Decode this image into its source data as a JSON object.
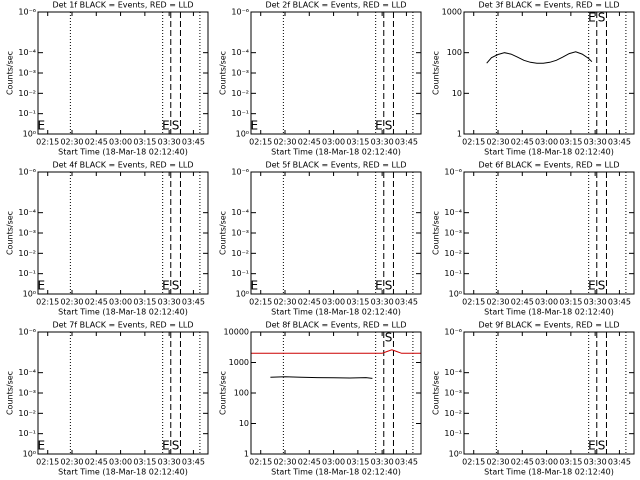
{
  "chart_data": [
    {
      "type": "line",
      "title": "Det 1f BLACK = Events, RED = LLD",
      "xlabel": "Start Time (18-Mar-18 02:12:40)",
      "ylabel": "Counts/sec",
      "log_y": true,
      "xlim": [
        129,
        234
      ],
      "xticks": [
        {
          "value": 135,
          "label": "02:15"
        },
        {
          "value": 150,
          "label": "02:30"
        },
        {
          "value": 165,
          "label": "02:45"
        },
        {
          "value": 180,
          "label": "03:00"
        },
        {
          "value": 195,
          "label": "03:15"
        },
        {
          "value": 210,
          "label": "03:30"
        },
        {
          "value": 225,
          "label": "03:45"
        }
      ],
      "ylim": [
        1,
        1e-06
      ],
      "yticks": [
        {
          "value": 1e-06,
          "label": "10⁻⁶"
        },
        {
          "value": 0.0001,
          "label": "10⁻⁴"
        },
        {
          "value": 0.001,
          "label": "10⁻³"
        },
        {
          "value": 0.01,
          "label": "10⁻²"
        },
        {
          "value": 0.1,
          "label": "10⁻¹"
        },
        {
          "value": 1,
          "label": "10⁰"
        }
      ],
      "series": [],
      "vlines": [
        {
          "x": 149,
          "style": "dotted"
        },
        {
          "x": 206,
          "style": "dotted"
        },
        {
          "x": 211,
          "style": "dashed"
        },
        {
          "x": 217,
          "style": "dashed"
        },
        {
          "x": 229,
          "style": "dotted"
        }
      ],
      "flags": [
        {
          "x": 131,
          "text": "E",
          "pos": "bottom"
        },
        {
          "x": 208,
          "text": "E",
          "pos": "bottom"
        },
        {
          "x": 214,
          "text": "S",
          "pos": "bottom"
        }
      ]
    },
    {
      "type": "line",
      "title": "Det 2f BLACK = Events, RED = LLD",
      "xlabel": "Start Time (18-Mar-18 02:12:40)",
      "ylabel": "Counts/sec",
      "log_y": true,
      "xlim": [
        129,
        234
      ],
      "xticks": [
        {
          "value": 135,
          "label": "02:15"
        },
        {
          "value": 150,
          "label": "02:30"
        },
        {
          "value": 165,
          "label": "02:45"
        },
        {
          "value": 180,
          "label": "03:00"
        },
        {
          "value": 195,
          "label": "03:15"
        },
        {
          "value": 210,
          "label": "03:30"
        },
        {
          "value": 225,
          "label": "03:45"
        }
      ],
      "ylim": [
        1,
        1e-06
      ],
      "yticks": [
        {
          "value": 1e-06,
          "label": "10⁻⁶"
        },
        {
          "value": 0.0001,
          "label": "10⁻⁴"
        },
        {
          "value": 0.001,
          "label": "10⁻³"
        },
        {
          "value": 0.01,
          "label": "10⁻²"
        },
        {
          "value": 0.1,
          "label": "10⁻¹"
        },
        {
          "value": 1,
          "label": "10⁰"
        }
      ],
      "series": [],
      "vlines": [
        {
          "x": 149,
          "style": "dotted"
        },
        {
          "x": 206,
          "style": "dotted"
        },
        {
          "x": 211,
          "style": "dashed"
        },
        {
          "x": 217,
          "style": "dashed"
        },
        {
          "x": 229,
          "style": "dotted"
        }
      ],
      "flags": [
        {
          "x": 131,
          "text": "E",
          "pos": "bottom"
        },
        {
          "x": 208,
          "text": "E",
          "pos": "bottom"
        },
        {
          "x": 214,
          "text": "S",
          "pos": "bottom"
        }
      ]
    },
    {
      "type": "line",
      "title": "Det 3f BLACK = Events, RED = LLD",
      "xlabel": "Start Time (18-Mar-18 02:12:40)",
      "ylabel": "Counts/sec",
      "log_y": true,
      "xlim": [
        129,
        234
      ],
      "xticks": [
        {
          "value": 135,
          "label": "02:15"
        },
        {
          "value": 150,
          "label": "02:30"
        },
        {
          "value": 165,
          "label": "02:45"
        },
        {
          "value": 180,
          "label": "03:00"
        },
        {
          "value": 195,
          "label": "03:15"
        },
        {
          "value": 210,
          "label": "03:30"
        },
        {
          "value": 225,
          "label": "03:45"
        }
      ],
      "ylim": [
        1,
        1000
      ],
      "yticks": [
        1,
        10,
        100,
        1000
      ],
      "series": [
        {
          "name": "Events",
          "color": "#000000",
          "x": [
            143,
            146,
            150,
            154,
            158,
            162,
            166,
            170,
            174,
            178,
            182,
            186,
            190,
            194,
            198,
            202,
            206,
            208
          ],
          "values": [
            55,
            75,
            90,
            100,
            92,
            78,
            65,
            58,
            55,
            55,
            58,
            65,
            78,
            95,
            105,
            92,
            72,
            60
          ]
        }
      ],
      "vlines": [
        {
          "x": 149,
          "style": "dotted"
        },
        {
          "x": 206,
          "style": "dotted"
        },
        {
          "x": 211,
          "style": "dashed"
        },
        {
          "x": 217,
          "style": "dashed"
        },
        {
          "x": 229,
          "style": "dotted"
        }
      ],
      "flags": [
        {
          "x": 208,
          "text": "E",
          "pos": "top"
        },
        {
          "x": 214,
          "text": "S",
          "pos": "top"
        }
      ]
    },
    {
      "type": "line",
      "title": "Det 4f BLACK = Events, RED = LLD",
      "xlabel": "Start Time (18-Mar-18 02:12:40)",
      "ylabel": "Counts/sec",
      "log_y": true,
      "xlim": [
        129,
        234
      ],
      "xticks": [
        {
          "value": 135,
          "label": "02:15"
        },
        {
          "value": 150,
          "label": "02:30"
        },
        {
          "value": 165,
          "label": "02:45"
        },
        {
          "value": 180,
          "label": "03:00"
        },
        {
          "value": 195,
          "label": "03:15"
        },
        {
          "value": 210,
          "label": "03:30"
        },
        {
          "value": 225,
          "label": "03:45"
        }
      ],
      "ylim": [
        1,
        1e-06
      ],
      "yticks": [
        {
          "value": 1e-06,
          "label": "10⁻⁶"
        },
        {
          "value": 0.0001,
          "label": "10⁻⁴"
        },
        {
          "value": 0.001,
          "label": "10⁻³"
        },
        {
          "value": 0.01,
          "label": "10⁻²"
        },
        {
          "value": 0.1,
          "label": "10⁻¹"
        },
        {
          "value": 1,
          "label": "10⁰"
        }
      ],
      "series": [],
      "vlines": [
        {
          "x": 149,
          "style": "dotted"
        },
        {
          "x": 206,
          "style": "dotted"
        },
        {
          "x": 211,
          "style": "dashed"
        },
        {
          "x": 217,
          "style": "dashed"
        },
        {
          "x": 229,
          "style": "dotted"
        }
      ],
      "flags": [
        {
          "x": 131,
          "text": "E",
          "pos": "bottom"
        },
        {
          "x": 208,
          "text": "E",
          "pos": "bottom"
        },
        {
          "x": 214,
          "text": "S",
          "pos": "bottom"
        }
      ]
    },
    {
      "type": "line",
      "title": "Det 5f BLACK = Events, RED = LLD",
      "xlabel": "Start Time (18-Mar-18 02:12:40)",
      "ylabel": "Counts/sec",
      "log_y": true,
      "xlim": [
        129,
        234
      ],
      "xticks": [
        {
          "value": 135,
          "label": "02:15"
        },
        {
          "value": 150,
          "label": "02:30"
        },
        {
          "value": 165,
          "label": "02:45"
        },
        {
          "value": 180,
          "label": "03:00"
        },
        {
          "value": 195,
          "label": "03:15"
        },
        {
          "value": 210,
          "label": "03:30"
        },
        {
          "value": 225,
          "label": "03:45"
        }
      ],
      "ylim": [
        1,
        1e-06
      ],
      "yticks": [
        {
          "value": 1e-06,
          "label": "10⁻⁶"
        },
        {
          "value": 0.0001,
          "label": "10⁻⁴"
        },
        {
          "value": 0.001,
          "label": "10⁻³"
        },
        {
          "value": 0.01,
          "label": "10⁻²"
        },
        {
          "value": 0.1,
          "label": "10⁻¹"
        },
        {
          "value": 1,
          "label": "10⁰"
        }
      ],
      "series": [],
      "vlines": [
        {
          "x": 149,
          "style": "dotted"
        },
        {
          "x": 206,
          "style": "dotted"
        },
        {
          "x": 211,
          "style": "dashed"
        },
        {
          "x": 217,
          "style": "dashed"
        },
        {
          "x": 229,
          "style": "dotted"
        }
      ],
      "flags": [
        {
          "x": 131,
          "text": "E",
          "pos": "bottom"
        },
        {
          "x": 208,
          "text": "E",
          "pos": "bottom"
        },
        {
          "x": 214,
          "text": "S",
          "pos": "bottom"
        }
      ]
    },
    {
      "type": "line",
      "title": "Det 6f BLACK = Events, RED = LLD",
      "xlabel": "Start Time (18-Mar-18 02:12:40)",
      "ylabel": "Counts/sec",
      "log_y": true,
      "xlim": [
        129,
        234
      ],
      "xticks": [
        {
          "value": 135,
          "label": "02:15"
        },
        {
          "value": 150,
          "label": "02:30"
        },
        {
          "value": 165,
          "label": "02:45"
        },
        {
          "value": 180,
          "label": "03:00"
        },
        {
          "value": 195,
          "label": "03:15"
        },
        {
          "value": 210,
          "label": "03:30"
        },
        {
          "value": 225,
          "label": "03:45"
        }
      ],
      "ylim": [
        1,
        1e-06
      ],
      "yticks": [
        {
          "value": 1e-06,
          "label": "10⁻⁶"
        },
        {
          "value": 0.0001,
          "label": "10⁻⁴"
        },
        {
          "value": 0.001,
          "label": "10⁻³"
        },
        {
          "value": 0.01,
          "label": "10⁻²"
        },
        {
          "value": 0.1,
          "label": "10⁻¹"
        },
        {
          "value": 1,
          "label": "10⁰"
        }
      ],
      "series": [],
      "vlines": [
        {
          "x": 149,
          "style": "dotted"
        },
        {
          "x": 206,
          "style": "dotted"
        },
        {
          "x": 211,
          "style": "dashed"
        },
        {
          "x": 217,
          "style": "dashed"
        },
        {
          "x": 229,
          "style": "dotted"
        }
      ],
      "flags": [
        {
          "x": 208,
          "text": "E",
          "pos": "bottom"
        },
        {
          "x": 214,
          "text": "S",
          "pos": "bottom"
        }
      ]
    },
    {
      "type": "line",
      "title": "Det 7f BLACK = Events, RED = LLD",
      "xlabel": "Start Time (18-Mar-18 02:12:40)",
      "ylabel": "Counts/sec",
      "log_y": true,
      "xlim": [
        129,
        234
      ],
      "xticks": [
        {
          "value": 135,
          "label": "02:15"
        },
        {
          "value": 150,
          "label": "02:30"
        },
        {
          "value": 165,
          "label": "02:45"
        },
        {
          "value": 180,
          "label": "03:00"
        },
        {
          "value": 195,
          "label": "03:15"
        },
        {
          "value": 210,
          "label": "03:30"
        },
        {
          "value": 225,
          "label": "03:45"
        }
      ],
      "ylim": [
        1,
        1e-06
      ],
      "yticks": [
        {
          "value": 1e-06,
          "label": "10⁻⁶"
        },
        {
          "value": 0.0001,
          "label": "10⁻⁴"
        },
        {
          "value": 0.001,
          "label": "10⁻³"
        },
        {
          "value": 0.01,
          "label": "10⁻²"
        },
        {
          "value": 0.1,
          "label": "10⁻¹"
        },
        {
          "value": 1,
          "label": "10⁰"
        }
      ],
      "series": [],
      "vlines": [
        {
          "x": 149,
          "style": "dotted"
        },
        {
          "x": 206,
          "style": "dotted"
        },
        {
          "x": 211,
          "style": "dashed"
        },
        {
          "x": 217,
          "style": "dashed"
        },
        {
          "x": 229,
          "style": "dotted"
        }
      ],
      "flags": [
        {
          "x": 131,
          "text": "E",
          "pos": "bottom"
        },
        {
          "x": 208,
          "text": "E",
          "pos": "bottom"
        },
        {
          "x": 214,
          "text": "S",
          "pos": "bottom"
        }
      ]
    },
    {
      "type": "line",
      "title": "Det 8f BLACK = Events, RED = LLD",
      "xlabel": "Start Time (18-Mar-18 02:12:40)",
      "ylabel": "Counts/sec",
      "log_y": true,
      "xlim": [
        129,
        234
      ],
      "xticks": [
        {
          "value": 135,
          "label": "02:15"
        },
        {
          "value": 150,
          "label": "02:30"
        },
        {
          "value": 165,
          "label": "02:45"
        },
        {
          "value": 180,
          "label": "03:00"
        },
        {
          "value": 195,
          "label": "03:15"
        },
        {
          "value": 210,
          "label": "03:30"
        },
        {
          "value": 225,
          "label": "03:45"
        }
      ],
      "ylim": [
        1,
        10000
      ],
      "yticks": [
        1,
        10,
        100,
        1000,
        10000
      ],
      "series": [
        {
          "name": "Events",
          "color": "#000000",
          "x": [
            141,
            150,
            160,
            170,
            180,
            190,
            200,
            204
          ],
          "values": [
            330,
            340,
            330,
            320,
            315,
            310,
            320,
            300
          ]
        },
        {
          "name": "LLD",
          "color": "#cc0000",
          "x": [
            129,
            205,
            210,
            213,
            216,
            219,
            222,
            234
          ],
          "values": [
            2000,
            2000,
            2000,
            2300,
            2600,
            2300,
            2000,
            2000
          ]
        }
      ],
      "vlines": [
        {
          "x": 149,
          "style": "dotted"
        },
        {
          "x": 206,
          "style": "dotted"
        },
        {
          "x": 211,
          "style": "dashed"
        },
        {
          "x": 217,
          "style": "dashed"
        },
        {
          "x": 229,
          "style": "dotted"
        }
      ],
      "flags": [
        {
          "x": 214,
          "text": "S",
          "pos": "top"
        }
      ]
    },
    {
      "type": "line",
      "title": "Det 9f BLACK = Events, RED = LLD",
      "xlabel": "Start Time (18-Mar-18 02:12:40)",
      "ylabel": "Counts/sec",
      "log_y": true,
      "xlim": [
        129,
        234
      ],
      "xticks": [
        {
          "value": 135,
          "label": "02:15"
        },
        {
          "value": 150,
          "label": "02:30"
        },
        {
          "value": 165,
          "label": "02:45"
        },
        {
          "value": 180,
          "label": "03:00"
        },
        {
          "value": 195,
          "label": "03:15"
        },
        {
          "value": 210,
          "label": "03:30"
        },
        {
          "value": 225,
          "label": "03:45"
        }
      ],
      "ylim": [
        1,
        1e-06
      ],
      "yticks": [
        {
          "value": 1e-06,
          "label": "10⁻⁶"
        },
        {
          "value": 0.0001,
          "label": "10⁻⁴"
        },
        {
          "value": 0.001,
          "label": "10⁻³"
        },
        {
          "value": 0.01,
          "label": "10⁻²"
        },
        {
          "value": 0.1,
          "label": "10⁻¹"
        },
        {
          "value": 1,
          "label": "10⁰"
        }
      ],
      "series": [],
      "vlines": [
        {
          "x": 149,
          "style": "dotted"
        },
        {
          "x": 206,
          "style": "dotted"
        },
        {
          "x": 211,
          "style": "dashed"
        },
        {
          "x": 217,
          "style": "dashed"
        },
        {
          "x": 229,
          "style": "dotted"
        }
      ],
      "flags": [
        {
          "x": 208,
          "text": "E",
          "pos": "bottom"
        },
        {
          "x": 214,
          "text": "S",
          "pos": "bottom"
        }
      ]
    }
  ]
}
